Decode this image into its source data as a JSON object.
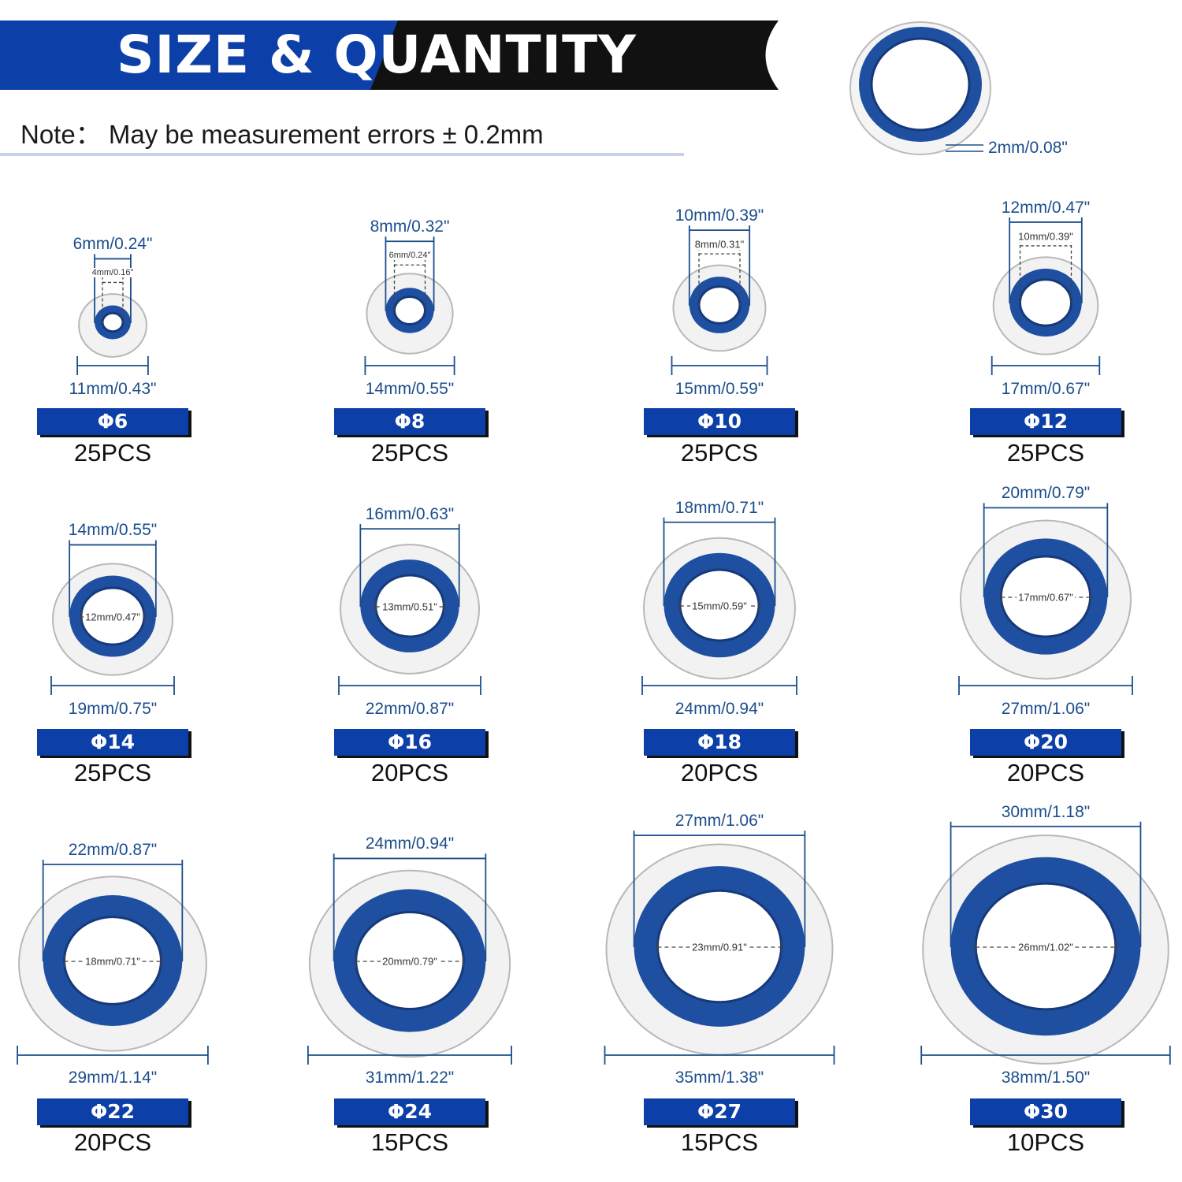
{
  "header": {
    "title": "SIZE & QUANTITY",
    "note": "Note： May be measurement errors ± 0.2mm",
    "thickness": "2mm/0.08\""
  },
  "colors": {
    "banner_blue": "#0c3fa8",
    "banner_dark": "#111111",
    "ring_blue": "#1f4fa0",
    "label_blue": "#1c4e8c"
  },
  "items": [
    {
      "size": "Φ6",
      "qty": "25PCS",
      "outer": "11mm/0.43\"",
      "blue_outer": "6mm/0.24\"",
      "inner": "4mm/0.16\"",
      "od_mm": 11,
      "bo_mm": 6,
      "id_mm": 4
    },
    {
      "size": "Φ8",
      "qty": "25PCS",
      "outer": "14mm/0.55\"",
      "blue_outer": "8mm/0.32\"",
      "inner": "6mm/0.24\"",
      "od_mm": 14,
      "bo_mm": 8,
      "id_mm": 6
    },
    {
      "size": "Φ10",
      "qty": "25PCS",
      "outer": "15mm/0.59\"",
      "blue_outer": "10mm/0.39\"",
      "inner": "8mm/0.31\"",
      "od_mm": 15,
      "bo_mm": 10,
      "id_mm": 8
    },
    {
      "size": "Φ12",
      "qty": "25PCS",
      "outer": "17mm/0.67\"",
      "blue_outer": "12mm/0.47\"",
      "inner": "10mm/0.39\"",
      "od_mm": 17,
      "bo_mm": 12,
      "id_mm": 10
    },
    {
      "size": "Φ14",
      "qty": "25PCS",
      "outer": "19mm/0.75\"",
      "blue_outer": "14mm/0.55\"",
      "inner": "12mm/0.47\"",
      "od_mm": 19,
      "bo_mm": 14,
      "id_mm": 12
    },
    {
      "size": "Φ16",
      "qty": "20PCS",
      "outer": "22mm/0.87\"",
      "blue_outer": "16mm/0.63\"",
      "inner": "13mm/0.51\"",
      "od_mm": 22,
      "bo_mm": 16,
      "id_mm": 13
    },
    {
      "size": "Φ18",
      "qty": "20PCS",
      "outer": "24mm/0.94\"",
      "blue_outer": "18mm/0.71\"",
      "inner": "15mm/0.59\"",
      "od_mm": 24,
      "bo_mm": 18,
      "id_mm": 15
    },
    {
      "size": "Φ20",
      "qty": "20PCS",
      "outer": "27mm/1.06\"",
      "blue_outer": "20mm/0.79\"",
      "inner": "17mm/0.67\"",
      "od_mm": 27,
      "bo_mm": 20,
      "id_mm": 17
    },
    {
      "size": "Φ22",
      "qty": "20PCS",
      "outer": "29mm/1.14\"",
      "blue_outer": "22mm/0.87\"",
      "inner": "18mm/0.71\"",
      "od_mm": 29,
      "bo_mm": 22,
      "id_mm": 18
    },
    {
      "size": "Φ24",
      "qty": "15PCS",
      "outer": "31mm/1.22\"",
      "blue_outer": "24mm/0.94\"",
      "inner": "20mm/0.79\"",
      "od_mm": 31,
      "bo_mm": 24,
      "id_mm": 20
    },
    {
      "size": "Φ27",
      "qty": "15PCS",
      "outer": "35mm/1.38\"",
      "blue_outer": "27mm/1.06\"",
      "inner": "23mm/0.91\"",
      "od_mm": 35,
      "bo_mm": 27,
      "id_mm": 23
    },
    {
      "size": "Φ30",
      "qty": "10PCS",
      "outer": "38mm/1.50\"",
      "blue_outer": "30mm/1.18\"",
      "inner": "26mm/1.02\"",
      "od_mm": 38,
      "bo_mm": 30,
      "id_mm": 26
    }
  ]
}
